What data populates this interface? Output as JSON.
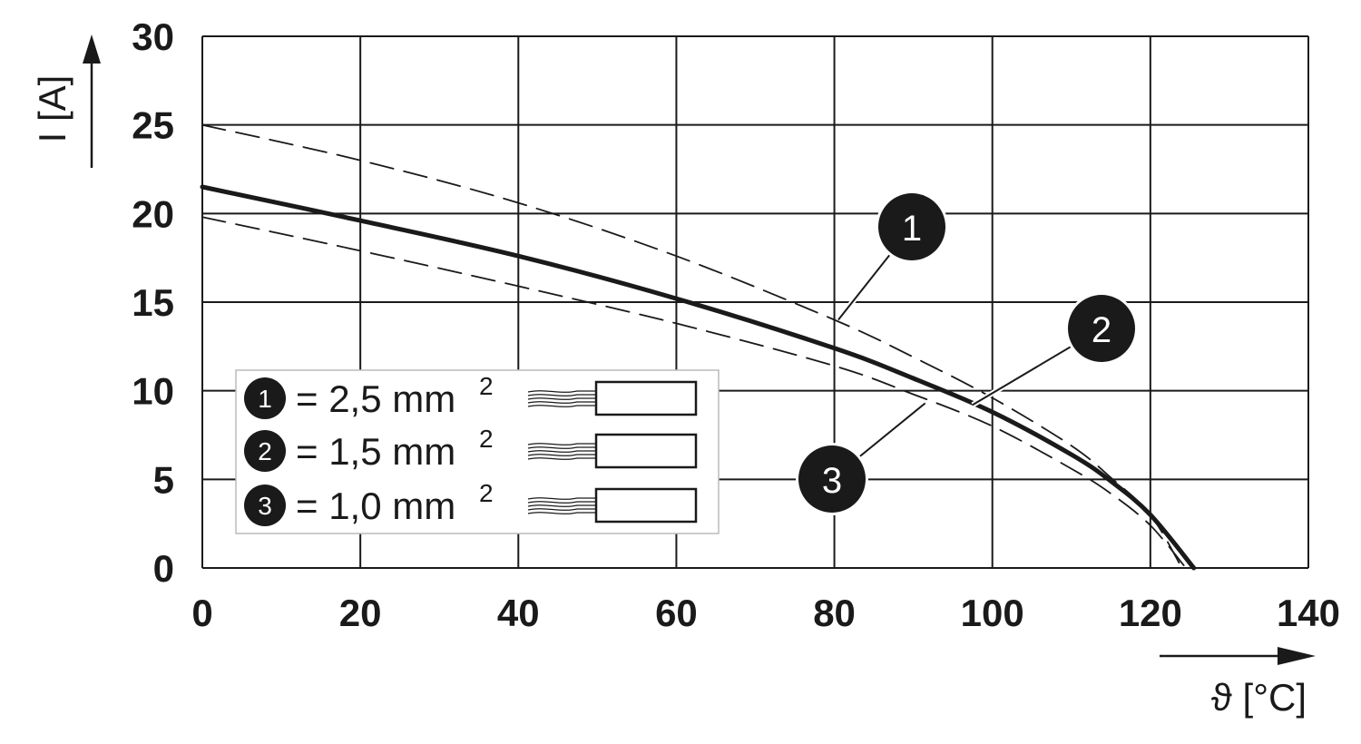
{
  "chart_data": {
    "type": "line",
    "xlabel": "ϑ [°C]",
    "ylabel": "I [A]",
    "xlim": [
      0,
      140
    ],
    "ylim": [
      0,
      30
    ],
    "x_ticks": [
      "0",
      "20",
      "40",
      "60",
      "80",
      "100",
      "120",
      "140"
    ],
    "y_ticks": [
      "0",
      "5",
      "10",
      "15",
      "20",
      "25",
      "30"
    ],
    "grid": true,
    "legend_position": "bottom-left",
    "series": [
      {
        "name": "1",
        "line_style": "dashed",
        "x": [
          0,
          20,
          40,
          60,
          80,
          90,
          100,
          110,
          115,
          120,
          124
        ],
        "y": [
          25,
          23.0,
          20.6,
          17.6,
          14.0,
          11.9,
          9.6,
          6.9,
          5.1,
          3.0,
          0
        ]
      },
      {
        "name": "2",
        "line_style": "solid",
        "x": [
          0,
          20,
          40,
          60,
          80,
          90,
          100,
          110,
          115,
          120,
          125.5
        ],
        "y": [
          21.5,
          19.6,
          17.6,
          15.2,
          12.4,
          10.7,
          8.8,
          6.4,
          4.9,
          3.0,
          0
        ]
      },
      {
        "name": "3",
        "line_style": "dashed",
        "x": [
          0,
          20,
          40,
          60,
          80,
          90,
          100,
          110,
          115,
          120,
          124.5
        ],
        "y": [
          19.8,
          17.9,
          15.9,
          13.8,
          11.4,
          9.8,
          8.0,
          5.6,
          4.2,
          2.4,
          0
        ]
      }
    ],
    "legend": [
      {
        "marker": "1",
        "text": "= 2,5 mm",
        "sup": "2"
      },
      {
        "marker": "2",
        "text": "= 1,5 mm",
        "sup": "2"
      },
      {
        "marker": "3",
        "text": "= 1,0 mm",
        "sup": "2"
      }
    ],
    "callouts": [
      {
        "label": "1",
        "x": 80.5,
        "y": 14.0
      },
      {
        "label": "2",
        "x": 97.5,
        "y": 9.2
      },
      {
        "label": "3",
        "x": 91.5,
        "y": 9.3
      }
    ]
  }
}
